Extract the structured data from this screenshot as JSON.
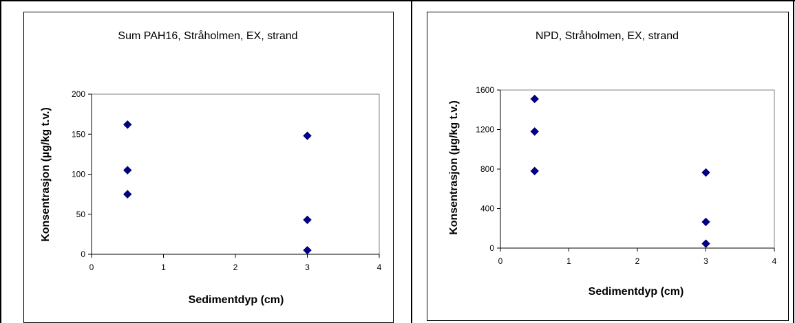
{
  "chart_data": [
    {
      "type": "scatter",
      "title": "Sum PAH16, Stråholmen, EX, strand",
      "xlabel": "Sedimentdyp (cm)",
      "ylabel": "Konsentrasjon (µg/kg t.v.)",
      "xlim": [
        0,
        4
      ],
      "ylim": [
        0,
        200
      ],
      "xticks": [
        0,
        1,
        2,
        3,
        4
      ],
      "yticks": [
        0,
        50,
        100,
        150,
        200
      ],
      "marker_color": "#000080",
      "series": [
        {
          "x": [
            0.5,
            0.5,
            0.5,
            3,
            3,
            3
          ],
          "y": [
            162,
            105,
            75,
            148,
            43,
            5
          ]
        }
      ],
      "grid": false,
      "legend": "none"
    },
    {
      "type": "scatter",
      "title": "NPD, Stråholmen, EX, strand",
      "xlabel": "Sedimentdyp (cm)",
      "ylabel": "Konsentrasjon (µg/kg t.v.)",
      "xlim": [
        0,
        4
      ],
      "ylim": [
        0,
        1600
      ],
      "xticks": [
        0,
        1,
        2,
        3,
        4
      ],
      "yticks": [
        0,
        400,
        800,
        1200,
        1600
      ],
      "marker_color": "#000080",
      "series": [
        {
          "x": [
            0.5,
            0.5,
            0.5,
            3,
            3,
            3
          ],
          "y": [
            1510,
            1180,
            780,
            765,
            265,
            45
          ]
        }
      ],
      "grid": false,
      "legend": "none"
    }
  ]
}
